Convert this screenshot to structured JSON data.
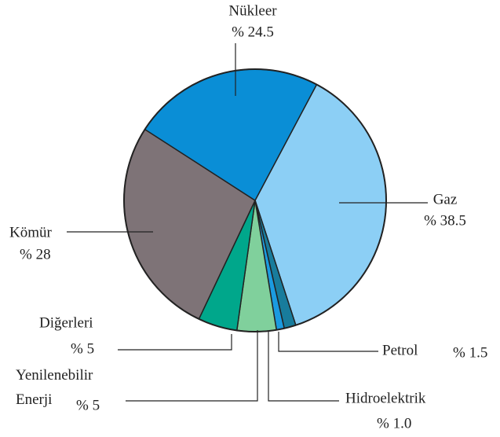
{
  "chart_data": {
    "type": "pie",
    "categories": [
      "Gaz",
      "Petrol",
      "Hidroelektrik",
      "Yenilenebilir Enerji",
      "Diğerleri",
      "Kömür",
      "Nükleer"
    ],
    "values": [
      38.5,
      1.5,
      1.0,
      5,
      5,
      28,
      24.5
    ],
    "value_labels": [
      "% 38.5",
      "% 1.5",
      "% 1.0",
      "% 5",
      "% 5",
      "% 28",
      "% 24.5"
    ],
    "colors": [
      "#8ccff5",
      "#187c9c",
      "#1b9be0",
      "#80d09c",
      "#00a78b",
      "#7e7377",
      "#0a8ed6"
    ]
  }
}
